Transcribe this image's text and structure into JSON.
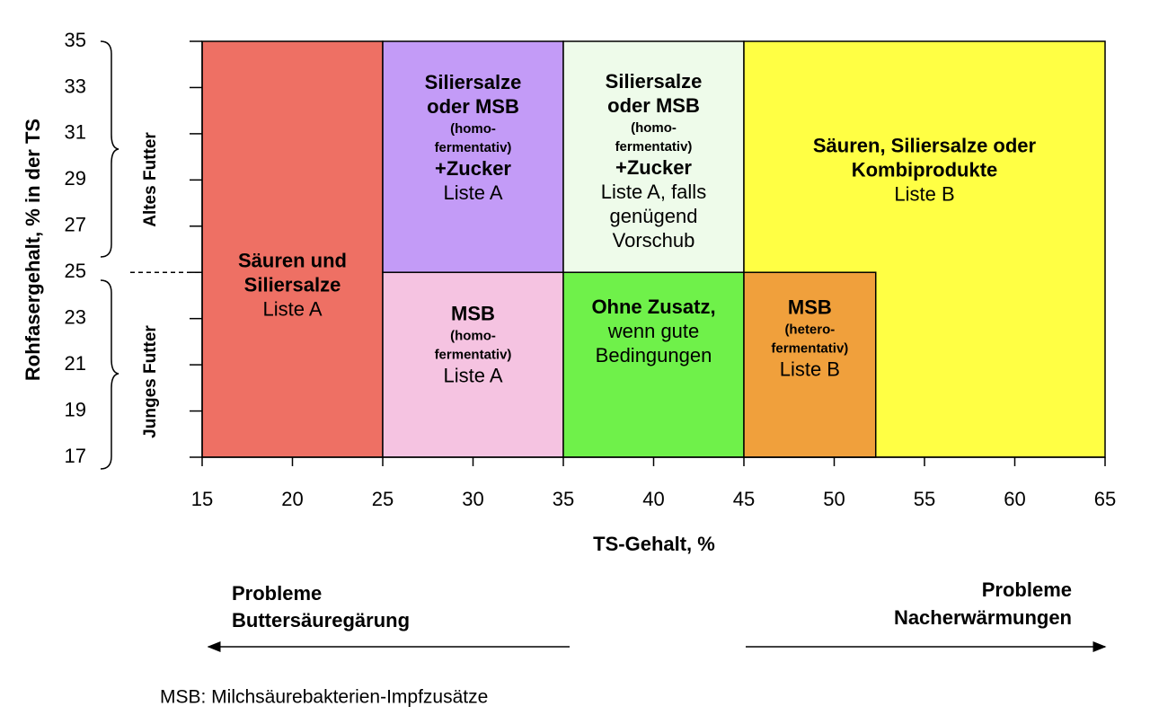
{
  "chart_data": {
    "type": "region",
    "y_label": "Rohfasergehalt, % in der TS",
    "x_label": "TS-Gehalt, %",
    "xlim": [
      15,
      65
    ],
    "ylim": [
      17,
      35
    ],
    "xticks": [
      15,
      20,
      25,
      30,
      35,
      40,
      45,
      50,
      55,
      60,
      65
    ],
    "yticks": [
      17,
      19,
      21,
      23,
      25,
      27,
      29,
      31,
      33,
      35
    ],
    "threshold_y": 25,
    "group_labels": [
      "Altes Futter",
      "Junges Futter"
    ],
    "left_note": [
      "Probleme",
      "Buttersäuregärung"
    ],
    "right_note": [
      "Probleme",
      "Nacherwärmungen"
    ],
    "footnote": "MSB: Milchsäurebakterien-Impfzusätze",
    "regions": [
      {
        "x": [
          15,
          25
        ],
        "y": [
          17,
          35
        ],
        "color": "#ee7064",
        "lines": [
          "Säuren und",
          "Siliersalze",
          "Liste A"
        ],
        "line_styles": [
          "b",
          "b",
          "n"
        ]
      },
      {
        "x": [
          25,
          35
        ],
        "y": [
          25,
          35
        ],
        "color": "#c39bf7",
        "lines": [
          "Siliersalze",
          "oder MSB",
          "(homo-",
          "fermentativ)",
          "+Zucker",
          "Liste A"
        ],
        "line_styles": [
          "b",
          "b",
          "s",
          "s",
          "b",
          "n"
        ]
      },
      {
        "x": [
          35,
          45
        ],
        "y": [
          25,
          35
        ],
        "color": "#eefbea",
        "lines": [
          "Siliersalze",
          "oder MSB",
          "(homo-",
          "fermentativ)",
          "+Zucker",
          "Liste A, falls",
          "genügend",
          "Vorschub"
        ],
        "line_styles": [
          "b",
          "b",
          "s",
          "s",
          "b",
          "n",
          "n",
          "n"
        ]
      },
      {
        "x": [
          45,
          65
        ],
        "y": [
          17,
          35
        ],
        "color": "#ffff44",
        "lines": [
          "Säuren, Siliersalze oder",
          "Kombiprodukte",
          "Liste B"
        ],
        "line_styles": [
          "b",
          "b",
          "n"
        ]
      },
      {
        "x": [
          25,
          35
        ],
        "y": [
          17,
          25
        ],
        "color": "#f5c3e1",
        "lines": [
          "MSB",
          "(homo-",
          "fermentativ)",
          "Liste A"
        ],
        "line_styles": [
          "b",
          "s",
          "s",
          "n"
        ]
      },
      {
        "x": [
          35,
          45
        ],
        "y": [
          17,
          25
        ],
        "color": "#6ff14a",
        "lines": [
          "Ohne Zusatz,",
          "wenn gute",
          "Bedingungen"
        ],
        "line_styles": [
          "b",
          "n",
          "n"
        ]
      },
      {
        "x": [
          45,
          52.3
        ],
        "y": [
          17,
          25
        ],
        "color": "#f0a03c",
        "lines": [
          "MSB",
          "(hetero-",
          "fermentativ)",
          "Liste B"
        ],
        "line_styles": [
          "b",
          "s",
          "s",
          "n"
        ]
      }
    ]
  }
}
